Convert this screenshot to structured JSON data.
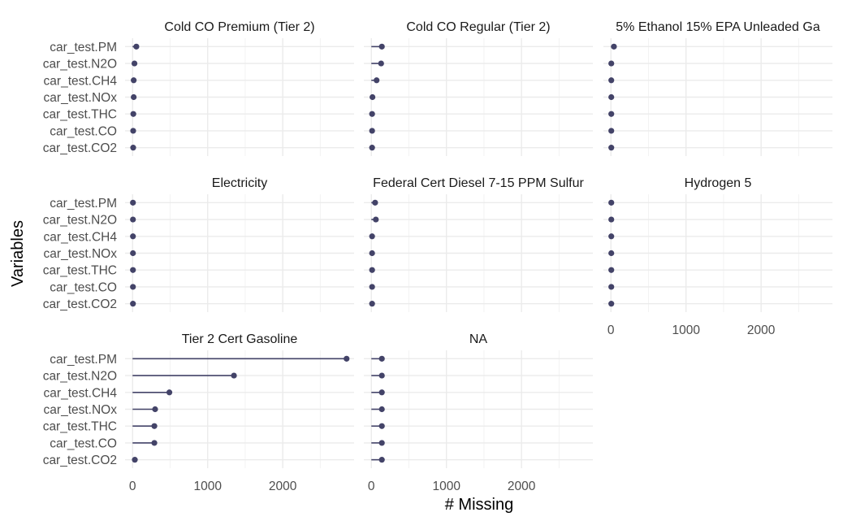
{
  "chart_data": {
    "type": "lollipop",
    "xlabel": "# Missing",
    "ylabel": "Variables",
    "xlim": [
      -100,
      2950
    ],
    "x_ticks": [
      0,
      1000,
      2000
    ],
    "variables": [
      "car_test.PM",
      "car_test.N2O",
      "car_test.CH4",
      "car_test.NOx",
      "car_test.THC",
      "car_test.CO",
      "car_test.CO2"
    ],
    "color": "#434368",
    "panels": [
      {
        "title": "Cold CO Premium (Tier 2)",
        "values": [
          50,
          25,
          15,
          15,
          10,
          8,
          8
        ]
      },
      {
        "title": "Cold CO Regular (Tier 2)",
        "values": [
          140,
          130,
          70,
          15,
          10,
          10,
          10
        ]
      },
      {
        "title": "5% Ethanol 15% EPA Unleaded Ga",
        "values": [
          40,
          5,
          5,
          5,
          5,
          5,
          5
        ]
      },
      {
        "title": "Electricity",
        "values": [
          5,
          5,
          5,
          5,
          5,
          5,
          5
        ]
      },
      {
        "title": "Federal Cert Diesel 7-15 PPM Sulfur",
        "values": [
          50,
          60,
          10,
          10,
          10,
          10,
          10
        ]
      },
      {
        "title": "Hydrogen 5",
        "values": [
          5,
          5,
          5,
          5,
          5,
          5,
          5
        ]
      },
      {
        "title": "Tier 2 Cert Gasoline",
        "values": [
          2850,
          1350,
          490,
          300,
          290,
          290,
          30
        ]
      },
      {
        "title": "NA",
        "values": [
          140,
          140,
          140,
          140,
          140,
          140,
          140
        ]
      }
    ]
  }
}
